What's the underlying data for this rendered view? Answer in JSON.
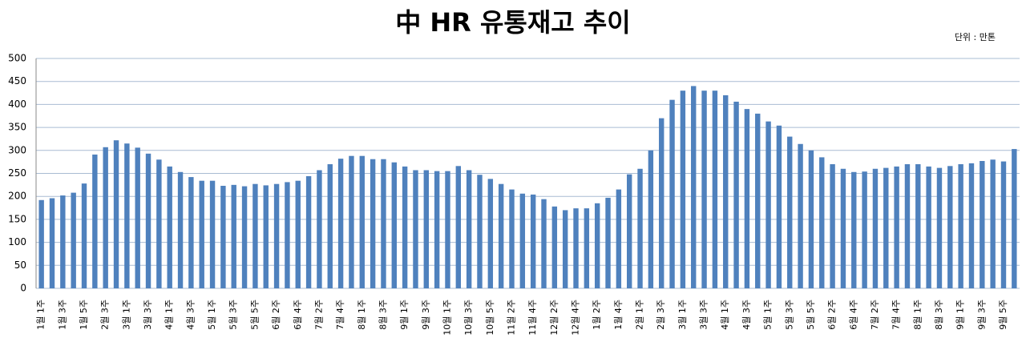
{
  "chart_data": {
    "type": "bar",
    "title": "中 HR 유통재고 추이",
    "subtitle": "단위 : 만톤",
    "categories": [
      "1월 1주",
      null,
      "1월 3주",
      null,
      "1월 5주",
      null,
      "2월 3주",
      null,
      "3월 1주",
      null,
      "3월 3주",
      null,
      "4월 1주",
      null,
      "4월 3주",
      null,
      "5월 1주",
      null,
      "5월 3주",
      null,
      "5월 5주",
      null,
      "6월 2주",
      null,
      "6월 4주",
      null,
      "7월 2주",
      null,
      "7월 4주",
      null,
      "8월 1주",
      null,
      "8월 3주",
      null,
      "9월 1주",
      null,
      "9월 3주",
      null,
      "10월 1주",
      null,
      "10월 3주",
      null,
      "10월 5주",
      null,
      "11월 2주",
      null,
      "11월 4주",
      null,
      "12월 2주",
      null,
      "12월 4주",
      null,
      "1월 2주",
      null,
      "1월 4주",
      null,
      "2월 1주",
      null,
      "2월 3주",
      null,
      "3월 1주",
      null,
      "3월 3주",
      null,
      "4월 1주",
      null,
      "4월 3주",
      null,
      "5월 1주",
      null,
      "5월 3주",
      null,
      "5월 5주",
      null,
      "6월 2주",
      null,
      "6월 4주",
      null,
      "7월 2주",
      null,
      "7월 4주",
      null,
      "8월 1주",
      null,
      "8월 3주",
      null,
      "9월 1주",
      null,
      "9월 3주",
      null,
      "9월 5주",
      null
    ],
    "values": [
      192,
      196,
      202,
      208,
      228,
      291,
      307,
      322,
      315,
      306,
      293,
      280,
      265,
      253,
      242,
      234,
      234,
      223,
      225,
      222,
      227,
      224,
      227,
      231,
      234,
      244,
      257,
      270,
      282,
      288,
      288,
      281,
      281,
      274,
      265,
      257,
      257,
      255,
      255,
      266,
      257,
      247,
      238,
      227,
      215,
      206,
      204,
      194,
      178,
      170,
      174,
      174,
      185,
      197,
      215,
      248,
      260,
      300,
      370,
      410,
      430,
      440,
      430,
      430,
      420,
      406,
      390,
      380,
      363,
      354,
      330,
      314,
      300,
      285,
      270,
      260,
      253,
      254,
      260,
      262,
      265,
      270,
      270,
      265,
      262,
      266,
      270,
      272,
      277,
      280,
      276,
      303
    ],
    "color": "#4f81bd",
    "ylim": [
      0,
      500
    ],
    "yticks": [
      0,
      50,
      100,
      150,
      200,
      250,
      300,
      350,
      400,
      450,
      500
    ],
    "grid": true
  }
}
